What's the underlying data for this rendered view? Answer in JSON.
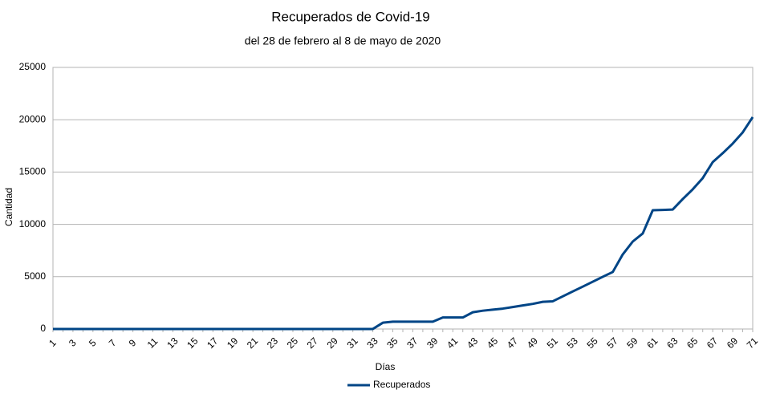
{
  "chart_data": {
    "type": "line",
    "title": "Recuperados de Covid-19",
    "subtitle": "del 28 de febrero al 8 de mayo de 2020",
    "x_label": "Días",
    "y_label": "Cantidad",
    "categories": [
      1,
      null,
      3,
      null,
      5,
      null,
      7,
      null,
      9,
      null,
      11,
      null,
      13,
      null,
      15,
      null,
      17,
      null,
      19,
      null,
      21,
      null,
      23,
      null,
      25,
      null,
      27,
      null,
      29,
      null,
      31,
      null,
      33,
      null,
      35,
      null,
      37,
      null,
      39,
      null,
      41,
      null,
      43,
      null,
      45,
      null,
      47,
      null,
      49,
      null,
      51,
      null,
      53,
      null,
      55,
      null,
      57,
      null,
      59,
      null,
      61,
      null,
      63,
      null,
      65,
      null,
      67,
      null,
      69,
      null,
      71
    ],
    "series": [
      {
        "name": "Recuperados",
        "color": "#004586",
        "values": [
          0,
          0,
          0,
          0,
          0,
          0,
          0,
          0,
          0,
          0,
          0,
          0,
          4,
          4,
          4,
          4,
          4,
          4,
          4,
          4,
          4,
          4,
          4,
          4,
          4,
          4,
          4,
          4,
          4,
          4,
          4,
          4,
          4,
          600,
          700,
          700,
          700,
          700,
          700,
          1100,
          1100,
          1100,
          1600,
          1750,
          1850,
          1950,
          2100,
          2250,
          2400,
          2600,
          2650,
          3120,
          3590,
          4050,
          4520,
          4990,
          5450,
          7130,
          8360,
          9130,
          11350,
          11380,
          11420,
          12420,
          13350,
          14420,
          15950,
          16800,
          17720,
          18790,
          20250
        ]
      }
    ],
    "ylim": [
      0,
      25000
    ],
    "yticks": [
      0,
      5000,
      10000,
      15000,
      20000,
      25000
    ],
    "grid": true,
    "legend": "bottom"
  }
}
